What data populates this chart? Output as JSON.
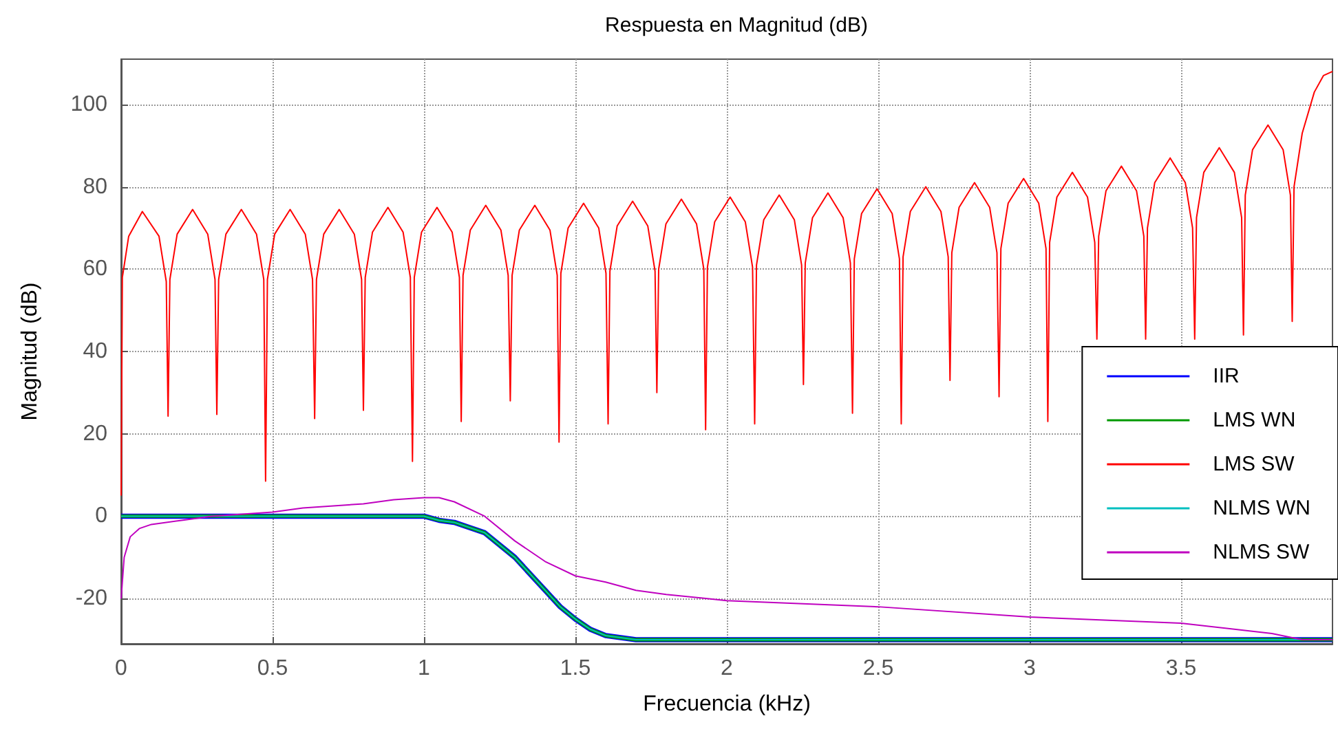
{
  "chart_data": {
    "type": "line",
    "title": "Respuesta en Magnitud (dB)",
    "xlabel": "Frecuencia (kHz)",
    "ylabel": "Magnitud (dB)",
    "xlim": [
      0,
      4
    ],
    "xticks": [
      0,
      0.5,
      1,
      1.5,
      2,
      2.5,
      3,
      3.5
    ],
    "ylim": [
      -31,
      111
    ],
    "yticks": [
      -20,
      0,
      20,
      40,
      60,
      80,
      100
    ],
    "grid": true,
    "legend": "right",
    "marker": "none",
    "line_style": "solid",
    "series": [
      {
        "name": "IIR",
        "color": "#0000ff",
        "x": [
          0,
          0.5,
          1.0,
          1.05,
          1.1,
          1.2,
          1.3,
          1.4,
          1.45,
          1.5,
          1.55,
          1.6,
          1.7,
          1.8,
          4.0
        ],
        "values": [
          0,
          0,
          0,
          -1,
          -1.5,
          -4,
          -10,
          -18,
          -22,
          -25,
          -27.5,
          -29,
          -30,
          -30,
          -30
        ]
      },
      {
        "name": "LMS WN",
        "color": "#009900",
        "x": [
          0,
          0.5,
          1.0,
          1.05,
          1.1,
          1.2,
          1.3,
          1.4,
          1.45,
          1.5,
          1.55,
          1.6,
          1.7,
          1.8,
          4.0
        ],
        "values": [
          0,
          0,
          0,
          -1,
          -1.5,
          -4,
          -10,
          -18,
          -22,
          -25,
          -27.5,
          -29,
          -30,
          -30,
          -30
        ]
      },
      {
        "name": "LMS SW",
        "color": "#ff0000",
        "x": [
          0,
          0.004,
          0.025,
          0.07,
          0.125,
          0.149,
          0.155,
          0.161,
          0.185,
          0.236,
          0.286,
          0.31,
          0.316,
          0.322,
          0.346,
          0.397,
          0.447,
          0.471,
          0.477,
          0.483,
          0.507,
          0.558,
          0.608,
          0.632,
          0.639,
          0.645,
          0.669,
          0.72,
          0.77,
          0.794,
          0.8,
          0.806,
          0.83,
          0.881,
          0.931,
          0.955,
          0.962,
          0.968,
          0.992,
          1.043,
          1.093,
          1.117,
          1.123,
          1.129,
          1.153,
          1.204,
          1.254,
          1.278,
          1.285,
          1.291,
          1.315,
          1.366,
          1.416,
          1.44,
          1.446,
          1.452,
          1.476,
          1.527,
          1.577,
          1.601,
          1.608,
          1.614,
          1.638,
          1.689,
          1.739,
          1.763,
          1.769,
          1.775,
          1.799,
          1.85,
          1.9,
          1.924,
          1.93,
          1.936,
          1.96,
          2.011,
          2.061,
          2.085,
          2.092,
          2.098,
          2.122,
          2.173,
          2.223,
          2.247,
          2.253,
          2.259,
          2.283,
          2.334,
          2.384,
          2.408,
          2.415,
          2.421,
          2.445,
          2.496,
          2.546,
          2.57,
          2.576,
          2.582,
          2.606,
          2.657,
          2.707,
          2.731,
          2.737,
          2.743,
          2.767,
          2.818,
          2.868,
          2.892,
          2.899,
          2.905,
          2.929,
          2.98,
          3.03,
          3.054,
          3.06,
          3.066,
          3.09,
          3.141,
          3.191,
          3.215,
          3.222,
          3.228,
          3.252,
          3.303,
          3.353,
          3.377,
          3.383,
          3.389,
          3.413,
          3.464,
          3.514,
          3.538,
          3.545,
          3.551,
          3.575,
          3.626,
          3.676,
          3.7,
          3.706,
          3.712,
          3.736,
          3.787,
          3.837,
          3.861,
          3.867,
          3.873,
          3.9,
          3.94,
          3.97,
          4.0
        ],
        "values": [
          5,
          58,
          68,
          74,
          68,
          57,
          24.3,
          57.5,
          68.5,
          74.5,
          68.5,
          57.5,
          24.7,
          57.5,
          68.5,
          74.5,
          68.5,
          57.5,
          8.5,
          57.5,
          68.5,
          74.5,
          68.5,
          57.5,
          23.7,
          57.5,
          68.5,
          74.5,
          68.5,
          57.5,
          25.7,
          58,
          69,
          75,
          69,
          58,
          13.3,
          58,
          69,
          75,
          69,
          58,
          23,
          58.5,
          69.5,
          75.5,
          69.5,
          58.5,
          28,
          58.5,
          69.5,
          75.5,
          69.5,
          58.5,
          18,
          59,
          70,
          76,
          70,
          59,
          22.4,
          59.5,
          70.5,
          76.5,
          70.5,
          59.5,
          30,
          60,
          71,
          77,
          71,
          60,
          21,
          60.5,
          71.5,
          77.5,
          71.5,
          60.5,
          22.4,
          61,
          72,
          78,
          72,
          61,
          32,
          61.5,
          72.5,
          78.5,
          72.5,
          61.5,
          25,
          62.5,
          73.5,
          79.5,
          73.5,
          62.5,
          22.4,
          63,
          74,
          80,
          74,
          63,
          33,
          64,
          75,
          81,
          75,
          64,
          29,
          65,
          76,
          82,
          76,
          65,
          23,
          66.5,
          77.5,
          83.5,
          77.5,
          66.5,
          43,
          68,
          79,
          85,
          79,
          68,
          43,
          70,
          81,
          87,
          81,
          70,
          43,
          72.5,
          83.5,
          89.5,
          83.5,
          72.5,
          44,
          78,
          89,
          95,
          89,
          78,
          47.3,
          80,
          93,
          103,
          107,
          108
        ]
      },
      {
        "name": "NLMS WN",
        "color": "#00bfbf",
        "x": [
          0,
          0.5,
          1.0,
          1.05,
          1.1,
          1.2,
          1.3,
          1.4,
          1.45,
          1.5,
          1.55,
          1.6,
          1.7,
          1.8,
          4.0
        ],
        "values": [
          0,
          0,
          0,
          -1,
          -1.5,
          -4,
          -10,
          -18,
          -22,
          -25,
          -27.5,
          -29,
          -30,
          -30,
          -30
        ]
      },
      {
        "name": "NLMS SW",
        "color": "#bf00bf",
        "x": [
          0,
          0.01,
          0.03,
          0.06,
          0.1,
          0.2,
          0.3,
          0.5,
          0.6,
          0.8,
          0.9,
          1.0,
          1.05,
          1.1,
          1.2,
          1.3,
          1.4,
          1.5,
          1.6,
          1.7,
          1.8,
          2.0,
          2.5,
          3.0,
          3.5,
          3.8,
          3.9,
          4.0
        ],
        "values": [
          -20,
          -10,
          -5,
          -3,
          -2,
          -1,
          0,
          1,
          2,
          3,
          4,
          4.5,
          4.5,
          3.5,
          0,
          -6,
          -11,
          -14.5,
          -16,
          -18,
          -19,
          -20.5,
          -22,
          -24.5,
          -26,
          -28.5,
          -30,
          -30
        ]
      }
    ]
  }
}
